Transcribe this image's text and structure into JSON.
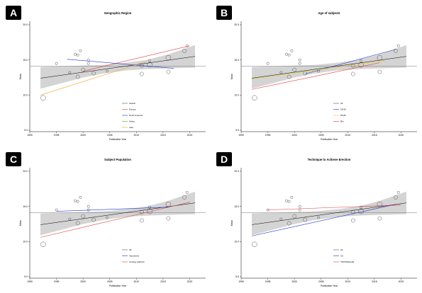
{
  "chart_data": [
    {
      "label": "A",
      "type": "scatter",
      "title": "Geographic Region",
      "xlabel": "Publication Year",
      "ylabel": "Mean",
      "xlim": [
        1990,
        2023
      ],
      "ylim": [
        4.8,
        20.5
      ],
      "x_ticks": [
        "1990",
        "1995",
        "2000",
        "2005",
        "2010",
        "2015",
        "2020"
      ],
      "y_ticks": [
        "5.0",
        "10.0",
        "15.0",
        "20.0"
      ],
      "reference_y": 14.1,
      "points": [
        {
          "x": 1992.5,
          "y": 9.6,
          "size": 3
        },
        {
          "x": 1995,
          "y": 14.5,
          "size": 1
        },
        {
          "x": 1997.5,
          "y": 13.2,
          "size": 1
        },
        {
          "x": 1998.5,
          "y": 15.8,
          "size": 1
        },
        {
          "x": 1999,
          "y": 15.7,
          "size": 1
        },
        {
          "x": 1999.5,
          "y": 16.3,
          "size": 1
        },
        {
          "x": 1999,
          "y": 12.6,
          "size": 2
        },
        {
          "x": 2000,
          "y": 13.6,
          "size": 2
        },
        {
          "x": 2001,
          "y": 15.0,
          "size": 1
        },
        {
          "x": 2001,
          "y": 14.5,
          "size": 1
        },
        {
          "x": 2002,
          "y": 13.1,
          "size": 2
        },
        {
          "x": 2004.5,
          "y": 13.4,
          "size": 1
        },
        {
          "x": 2011,
          "y": 13.0,
          "size": 2
        },
        {
          "x": 2011,
          "y": 14.2,
          "size": 2
        },
        {
          "x": 2012.5,
          "y": 14.3,
          "size": 3
        },
        {
          "x": 2012.5,
          "y": 14.9,
          "size": 1
        },
        {
          "x": 2016,
          "y": 13.3,
          "size": 2
        },
        {
          "x": 2016,
          "y": 15.3,
          "size": 3
        },
        {
          "x": 2019,
          "y": 16.3,
          "size": 2
        },
        {
          "x": 2019.5,
          "y": 17.0,
          "size": 1
        }
      ],
      "mean_line": {
        "x": [
          1992,
          2021
        ],
        "y": [
          12.4,
          15.5
        ]
      },
      "ci_band": {
        "x": [
          1992,
          1996,
          2000,
          2004,
          2008,
          2012,
          2016,
          2021
        ],
        "lower": [
          10.9,
          11.7,
          12.5,
          13.1,
          13.5,
          13.7,
          13.8,
          13.9
        ],
        "upper": [
          14.0,
          14.1,
          14.2,
          14.3,
          14.6,
          15.0,
          15.8,
          17.1
        ]
      },
      "series": [
        {
          "name": "Global",
          "color": "#555555",
          "line": null
        },
        {
          "name": "Europe",
          "color": "#e03a3a",
          "line": {
            "x": [
              2000,
              2020
            ],
            "y": [
              13.4,
              17.0
            ]
          }
        },
        {
          "name": "North America",
          "color": "#2233cc",
          "line": {
            "x": [
              1997,
              2017
            ],
            "y": [
              15.1,
              13.8
            ]
          }
        },
        {
          "name": "Africa",
          "color": "#33aa33",
          "line": null
        },
        {
          "name": "Asia",
          "color": "#f0a020",
          "line": {
            "x": [
              1992,
              2012
            ],
            "y": [
              10.0,
              14.8
            ]
          }
        }
      ]
    },
    {
      "label": "B",
      "type": "scatter",
      "title": "Age of subjects",
      "xlabel": "Publication Year",
      "ylabel": "Mean",
      "xlim": [
        1990,
        2023
      ],
      "ylim": [
        4.8,
        20.5
      ],
      "x_ticks": [
        "1990",
        "1995",
        "2000",
        "2005",
        "2010",
        "2015",
        "2020"
      ],
      "y_ticks": [
        "5.0",
        "10.0",
        "15.0",
        "20.0"
      ],
      "reference_y": 14.1,
      "points": [
        {
          "x": 1992.5,
          "y": 9.6,
          "size": 3
        },
        {
          "x": 1995,
          "y": 14.5,
          "size": 1
        },
        {
          "x": 1997.5,
          "y": 13.2,
          "size": 1
        },
        {
          "x": 1998.5,
          "y": 15.8,
          "size": 1
        },
        {
          "x": 1999,
          "y": 15.7,
          "size": 1
        },
        {
          "x": 1999.5,
          "y": 16.3,
          "size": 1
        },
        {
          "x": 1999,
          "y": 12.6,
          "size": 2
        },
        {
          "x": 2000,
          "y": 13.6,
          "size": 2
        },
        {
          "x": 2001,
          "y": 15.0,
          "size": 1
        },
        {
          "x": 2001,
          "y": 14.5,
          "size": 1
        },
        {
          "x": 2002,
          "y": 13.1,
          "size": 2
        },
        {
          "x": 2004.5,
          "y": 13.4,
          "size": 1
        },
        {
          "x": 2011,
          "y": 13.0,
          "size": 2
        },
        {
          "x": 2011,
          "y": 14.2,
          "size": 2
        },
        {
          "x": 2012.5,
          "y": 14.3,
          "size": 3
        },
        {
          "x": 2012.5,
          "y": 14.9,
          "size": 1
        },
        {
          "x": 2016,
          "y": 13.3,
          "size": 2
        },
        {
          "x": 2016,
          "y": 15.3,
          "size": 3
        },
        {
          "x": 2019,
          "y": 16.3,
          "size": 2
        },
        {
          "x": 2019.5,
          "y": 17.0,
          "size": 1
        }
      ],
      "mean_line": {
        "x": [
          1992,
          2021
        ],
        "y": [
          12.4,
          15.5
        ]
      },
      "ci_band": {
        "x": [
          1992,
          1996,
          2000,
          2004,
          2008,
          2012,
          2016,
          2021
        ],
        "lower": [
          10.9,
          11.7,
          12.5,
          13.1,
          13.5,
          13.7,
          13.8,
          13.9
        ],
        "upper": [
          14.0,
          14.1,
          14.2,
          14.3,
          14.6,
          15.0,
          15.8,
          17.1
        ]
      },
      "series": [
        {
          "name": "All",
          "color": "#555555",
          "line": null
        },
        {
          "name": "18-65",
          "color": "#2233cc",
          "line": {
            "x": [
              2002,
              2019
            ],
            "y": [
              13.0,
              16.5
            ]
          }
        },
        {
          "name": "65-85",
          "color": "#e6d020",
          "line": {
            "x": [
              1992,
              2017
            ],
            "y": [
              12.3,
              14.9
            ]
          }
        },
        {
          "name": "85+",
          "color": "#e03a3a",
          "line": {
            "x": [
              1992,
              2016
            ],
            "y": [
              10.8,
              14.6
            ]
          }
        }
      ]
    },
    {
      "label": "C",
      "type": "scatter",
      "title": "Subject Population",
      "xlabel": "Publication Year",
      "ylabel": "Mean",
      "xlim": [
        1990,
        2023
      ],
      "ylim": [
        4.8,
        20.5
      ],
      "x_ticks": [
        "1990",
        "1995",
        "2000",
        "2005",
        "2010",
        "2015",
        "2020"
      ],
      "y_ticks": [
        "5.0",
        "10.0",
        "15.0",
        "20.0"
      ],
      "reference_y": 14.1,
      "points": [
        {
          "x": 1992.5,
          "y": 9.6,
          "size": 3
        },
        {
          "x": 1995,
          "y": 14.5,
          "size": 1
        },
        {
          "x": 1997.5,
          "y": 13.2,
          "size": 1
        },
        {
          "x": 1998.5,
          "y": 15.8,
          "size": 1
        },
        {
          "x": 1999,
          "y": 15.7,
          "size": 1
        },
        {
          "x": 1999.5,
          "y": 16.3,
          "size": 1
        },
        {
          "x": 1999,
          "y": 12.6,
          "size": 2
        },
        {
          "x": 2000,
          "y": 13.6,
          "size": 2
        },
        {
          "x": 2001,
          "y": 15.0,
          "size": 1
        },
        {
          "x": 2001,
          "y": 14.5,
          "size": 1
        },
        {
          "x": 2002,
          "y": 13.1,
          "size": 2
        },
        {
          "x": 2004.5,
          "y": 13.4,
          "size": 1
        },
        {
          "x": 2011,
          "y": 13.0,
          "size": 2
        },
        {
          "x": 2011,
          "y": 14.2,
          "size": 2
        },
        {
          "x": 2012.5,
          "y": 14.3,
          "size": 3
        },
        {
          "x": 2012.5,
          "y": 14.9,
          "size": 1
        },
        {
          "x": 2016,
          "y": 13.3,
          "size": 2
        },
        {
          "x": 2016,
          "y": 15.3,
          "size": 3
        },
        {
          "x": 2019,
          "y": 16.3,
          "size": 2
        },
        {
          "x": 2019.5,
          "y": 17.0,
          "size": 1
        }
      ],
      "mean_line": {
        "x": [
          1992,
          2021
        ],
        "y": [
          12.4,
          15.5
        ]
      },
      "ci_band": {
        "x": [
          1992,
          1996,
          2000,
          2004,
          2008,
          2012,
          2016,
          2021
        ],
        "lower": [
          10.9,
          11.7,
          12.5,
          13.1,
          13.5,
          13.7,
          13.8,
          13.9
        ],
        "upper": [
          14.0,
          14.1,
          14.2,
          14.3,
          14.6,
          15.0,
          15.8,
          17.1
        ]
      },
      "series": [
        {
          "name": "All",
          "color": "#555555",
          "line": null
        },
        {
          "name": "Volunteers",
          "color": "#2233cc",
          "line": {
            "x": [
              1995,
              2016
            ],
            "y": [
              14.3,
              14.9
            ]
          }
        },
        {
          "name": "Urology patients",
          "color": "#e03a3a",
          "line": {
            "x": [
              1992,
              2020
            ],
            "y": [
              10.6,
              15.6
            ]
          }
        }
      ]
    },
    {
      "label": "D",
      "type": "scatter",
      "title": "Technique to Achieve Erection",
      "xlabel": "Publication Year",
      "ylabel": "Mean",
      "xlim": [
        1990,
        2023
      ],
      "ylim": [
        4.8,
        20.5
      ],
      "x_ticks": [
        "1990",
        "1995",
        "2000",
        "2005",
        "2010",
        "2015",
        "2020"
      ],
      "y_ticks": [
        "5.0",
        "10.0",
        "15.0",
        "20.0"
      ],
      "reference_y": 14.1,
      "points": [
        {
          "x": 1992.5,
          "y": 9.6,
          "size": 3
        },
        {
          "x": 1995,
          "y": 14.5,
          "size": 1
        },
        {
          "x": 1997.5,
          "y": 13.2,
          "size": 1
        },
        {
          "x": 1998.5,
          "y": 15.8,
          "size": 1
        },
        {
          "x": 1999,
          "y": 15.7,
          "size": 1
        },
        {
          "x": 1999.5,
          "y": 16.3,
          "size": 1
        },
        {
          "x": 1999,
          "y": 12.6,
          "size": 2
        },
        {
          "x": 2000,
          "y": 13.6,
          "size": 2
        },
        {
          "x": 2001,
          "y": 15.0,
          "size": 1
        },
        {
          "x": 2001,
          "y": 14.5,
          "size": 1
        },
        {
          "x": 2002,
          "y": 13.1,
          "size": 2
        },
        {
          "x": 2004.5,
          "y": 13.4,
          "size": 1
        },
        {
          "x": 2011,
          "y": 13.0,
          "size": 2
        },
        {
          "x": 2011,
          "y": 14.2,
          "size": 2
        },
        {
          "x": 2012.5,
          "y": 14.3,
          "size": 3
        },
        {
          "x": 2012.5,
          "y": 14.9,
          "size": 1
        },
        {
          "x": 2016,
          "y": 13.3,
          "size": 2
        },
        {
          "x": 2016,
          "y": 15.3,
          "size": 3
        },
        {
          "x": 2019,
          "y": 16.3,
          "size": 2
        },
        {
          "x": 2019.5,
          "y": 17.0,
          "size": 1
        }
      ],
      "mean_line": {
        "x": [
          1992,
          2021
        ],
        "y": [
          12.4,
          15.5
        ]
      },
      "ci_band": {
        "x": [
          1992,
          1996,
          2000,
          2004,
          2008,
          2012,
          2016,
          2021
        ],
        "lower": [
          10.9,
          11.7,
          12.5,
          13.1,
          13.5,
          13.7,
          13.8,
          13.9
        ],
        "upper": [
          14.0,
          14.1,
          14.2,
          14.3,
          14.6,
          15.0,
          15.8,
          17.1
        ]
      },
      "series": [
        {
          "name": "All",
          "color": "#555555",
          "line": null
        },
        {
          "name": "ICI",
          "color": "#2233cc",
          "line": {
            "x": [
              1992,
              2019
            ],
            "y": [
              10.8,
              15.3
            ]
          }
        },
        {
          "name": "VSS/Sildenafil",
          "color": "#e03a3a",
          "line": {
            "x": [
              1995,
              2020
            ],
            "y": [
              14.5,
              15.2
            ]
          }
        }
      ]
    }
  ]
}
